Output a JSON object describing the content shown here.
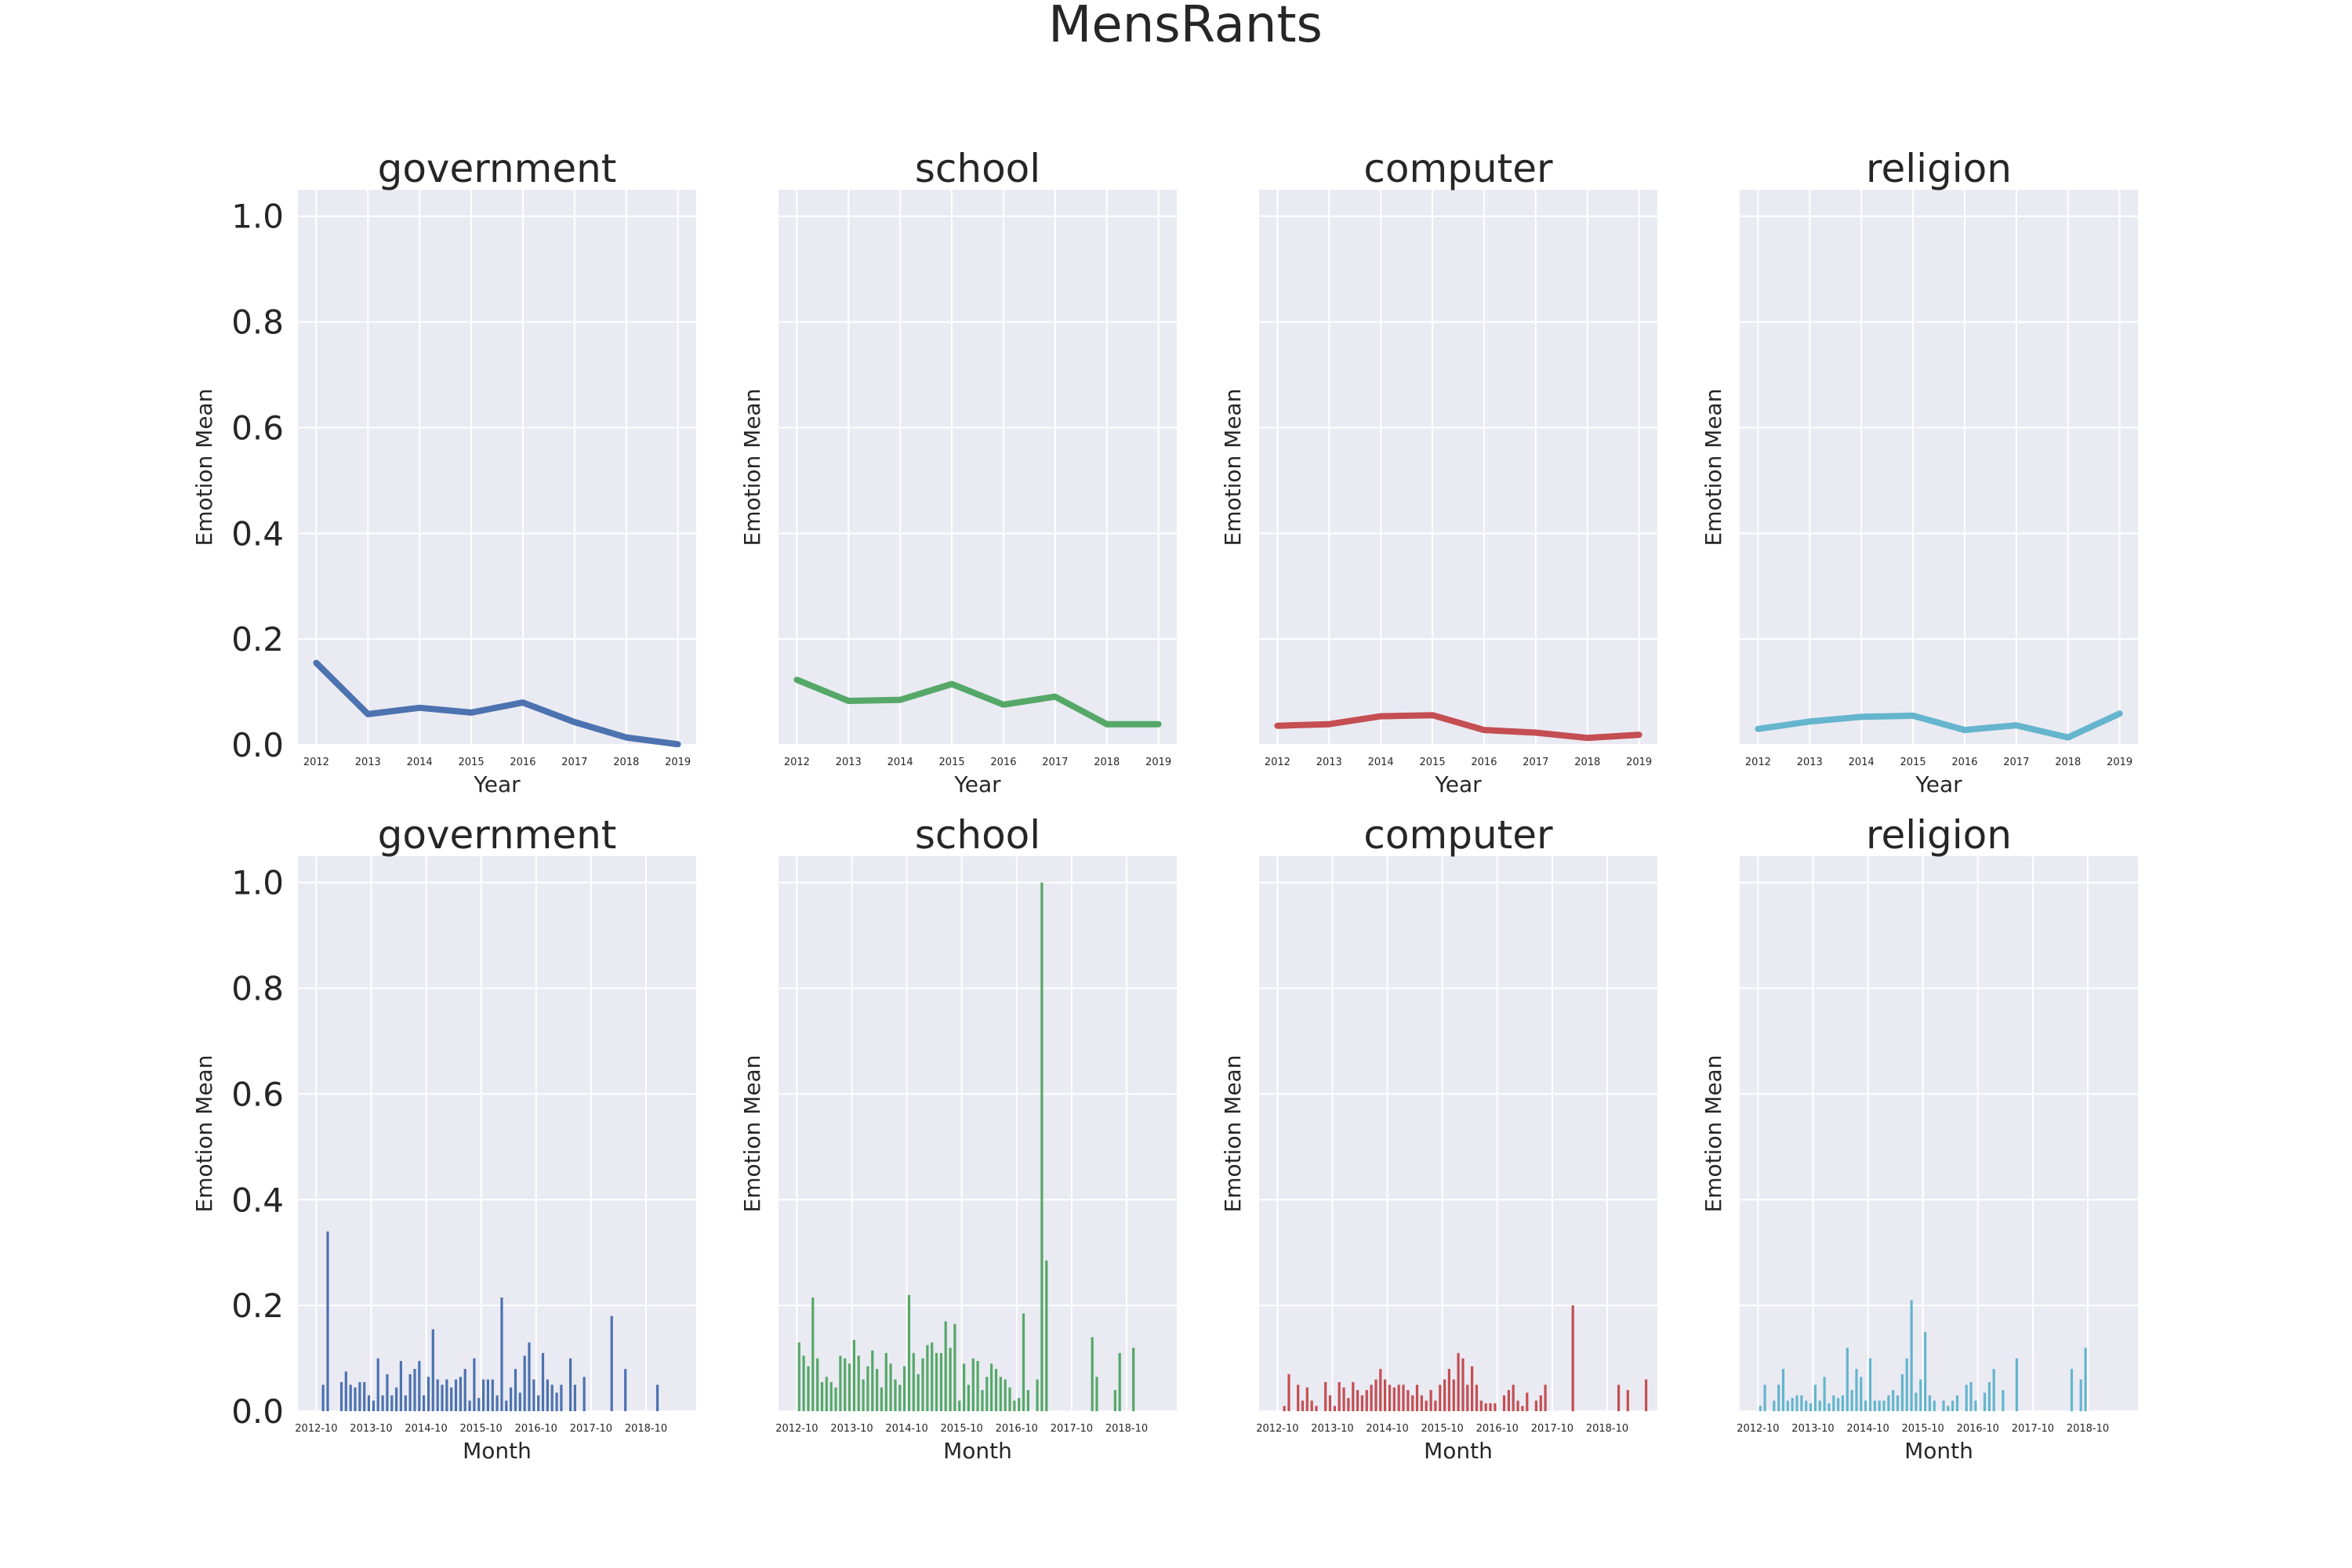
{
  "figure": {
    "title": "MensRants",
    "background": "#ffffff",
    "panel_background": "#eaeaf2",
    "grid_color": "#ffffff"
  },
  "chart_data": [
    {
      "type": "line",
      "title": "government",
      "xlabel": "Year",
      "ylabel": "Emotion Mean",
      "color": "#4c72b0",
      "x": [
        "2012",
        "2013",
        "2014",
        "2015",
        "2016",
        "2017",
        "2018",
        "2019"
      ],
      "values": [
        0.155,
        0.058,
        0.07,
        0.061,
        0.08,
        0.043,
        0.014,
        0.001
      ],
      "ylim": [
        0,
        1.05
      ],
      "yticks": [
        "0.0",
        "0.2",
        "0.4",
        "0.6",
        "0.8",
        "1.0"
      ],
      "show_yticklabels": true,
      "grid": true
    },
    {
      "type": "line",
      "title": "school",
      "xlabel": "Year",
      "ylabel": "Emotion Mean",
      "color": "#55a868",
      "x": [
        "2012",
        "2013",
        "2014",
        "2015",
        "2016",
        "2017",
        "2018",
        "2019"
      ],
      "values": [
        0.123,
        0.083,
        0.085,
        0.115,
        0.076,
        0.091,
        0.039,
        0.039
      ],
      "ylim": [
        0,
        1.05
      ],
      "yticks": [
        "0.0",
        "0.2",
        "0.4",
        "0.6",
        "0.8",
        "1.0"
      ],
      "show_yticklabels": false,
      "grid": true
    },
    {
      "type": "line",
      "title": "computer",
      "xlabel": "Year",
      "ylabel": "Emotion Mean",
      "color": "#c44e52",
      "x": [
        "2012",
        "2013",
        "2014",
        "2015",
        "2016",
        "2017",
        "2018",
        "2019"
      ],
      "values": [
        0.036,
        0.039,
        0.054,
        0.056,
        0.028,
        0.023,
        0.013,
        0.019
      ],
      "ylim": [
        0,
        1.05
      ],
      "yticks": [
        "0.0",
        "0.2",
        "0.4",
        "0.6",
        "0.8",
        "1.0"
      ],
      "show_yticklabels": false,
      "grid": true
    },
    {
      "type": "line",
      "title": "religion",
      "xlabel": "Year",
      "ylabel": "Emotion Mean",
      "color": "#64b5cd",
      "x": [
        "2012",
        "2013",
        "2014",
        "2015",
        "2016",
        "2017",
        "2018",
        "2019"
      ],
      "values": [
        0.03,
        0.044,
        0.053,
        0.055,
        0.028,
        0.037,
        0.014,
        0.059
      ],
      "ylim": [
        0,
        1.05
      ],
      "yticks": [
        "0.0",
        "0.2",
        "0.4",
        "0.6",
        "0.8",
        "1.0"
      ],
      "show_yticklabels": false,
      "grid": true
    },
    {
      "type": "bar",
      "title": "government",
      "xlabel": "Month",
      "ylabel": "Emotion Mean",
      "color": "#4c72b0",
      "xticklabels": [
        "2012-10",
        "2013-10",
        "2014-10",
        "2015-10",
        "2016-10",
        "2017-10",
        "2018-10"
      ],
      "values": [
        0,
        0.05,
        0.34,
        0,
        0,
        0.055,
        0.075,
        0.05,
        0.045,
        0.055,
        0.055,
        0.03,
        0.02,
        0.1,
        0.03,
        0.07,
        0.03,
        0.045,
        0.095,
        0.03,
        0.07,
        0.08,
        0.095,
        0.03,
        0.065,
        0.155,
        0.06,
        0.05,
        0.06,
        0.045,
        0.06,
        0.065,
        0.08,
        0.02,
        0.1,
        0.025,
        0.06,
        0.06,
        0.06,
        0.03,
        0.215,
        0.02,
        0.045,
        0.08,
        0.035,
        0.105,
        0.13,
        0.06,
        0.03,
        0.11,
        0.06,
        0.05,
        0.035,
        0.05,
        0,
        0.1,
        0.05,
        0,
        0.065,
        0,
        0,
        0,
        0,
        0,
        0.18,
        0,
        0,
        0.08,
        0,
        0,
        0,
        0,
        0,
        0,
        0.05,
        0,
        0,
        0,
        0,
        0
      ],
      "ylim": [
        0,
        1.05
      ],
      "yticks": [
        "0.0",
        "0.2",
        "0.4",
        "0.6",
        "0.8",
        "1.0"
      ],
      "show_yticklabels": true,
      "grid": true
    },
    {
      "type": "bar",
      "title": "school",
      "xlabel": "Month",
      "ylabel": "Emotion Mean",
      "color": "#55a868",
      "xticklabels": [
        "2012-10",
        "2013-10",
        "2014-10",
        "2015-10",
        "2016-10",
        "2017-10",
        "2018-10"
      ],
      "values": [
        0.13,
        0.105,
        0.085,
        0.215,
        0.1,
        0.055,
        0.065,
        0.055,
        0.045,
        0.105,
        0.1,
        0.09,
        0.135,
        0.105,
        0.06,
        0.085,
        0.115,
        0.08,
        0.045,
        0.11,
        0.09,
        0.06,
        0.05,
        0.085,
        0.22,
        0.11,
        0.07,
        0.1,
        0.125,
        0.13,
        0.11,
        0.11,
        0.17,
        0.12,
        0.165,
        0.02,
        0.09,
        0.05,
        0.1,
        0.095,
        0.04,
        0.065,
        0.09,
        0.08,
        0.065,
        0.06,
        0.045,
        0.02,
        0.025,
        0.185,
        0.04,
        0,
        0.06,
        1.0,
        0.285,
        0,
        0,
        0,
        0,
        0,
        0,
        0,
        0,
        0,
        0.14,
        0.065,
        0,
        0,
        0,
        0.04,
        0.11,
        0,
        0,
        0.12,
        0,
        0
      ],
      "ylim": [
        0,
        1.05
      ],
      "yticks": [
        "0.0",
        "0.2",
        "0.4",
        "0.6",
        "0.8",
        "1.0"
      ],
      "show_yticklabels": false,
      "grid": true
    },
    {
      "type": "bar",
      "title": "computer",
      "xlabel": "Month",
      "ylabel": "Emotion Mean",
      "color": "#c44e52",
      "xticklabels": [
        "2012-10",
        "2013-10",
        "2014-10",
        "2015-10",
        "2016-10",
        "2017-10",
        "2018-10"
      ],
      "values": [
        0,
        0.01,
        0.07,
        0,
        0.05,
        0.02,
        0.045,
        0.02,
        0.01,
        0,
        0.055,
        0.03,
        0.01,
        0.055,
        0.045,
        0.025,
        0.055,
        0.04,
        0.03,
        0.04,
        0.05,
        0.06,
        0.08,
        0.06,
        0.05,
        0.045,
        0.05,
        0.05,
        0.04,
        0.03,
        0.05,
        0.03,
        0.02,
        0.04,
        0.02,
        0.05,
        0.06,
        0.08,
        0.06,
        0.11,
        0.1,
        0.05,
        0.085,
        0.05,
        0.02,
        0.015,
        0.015,
        0.015,
        0,
        0.03,
        0.04,
        0.05,
        0.02,
        0.01,
        0.035,
        0,
        0.02,
        0.03,
        0.05,
        0,
        0,
        0,
        0,
        0,
        0.2,
        0,
        0,
        0,
        0,
        0,
        0,
        0,
        0,
        0,
        0.05,
        0,
        0.04,
        0,
        0,
        0,
        0.06
      ],
      "ylim": [
        0,
        1.05
      ],
      "yticks": [
        "0.0",
        "0.2",
        "0.4",
        "0.6",
        "0.8",
        "1.0"
      ],
      "show_yticklabels": false,
      "grid": true
    },
    {
      "type": "bar",
      "title": "religion",
      "xlabel": "Month",
      "ylabel": "Emotion Mean",
      "color": "#64b5cd",
      "xticklabels": [
        "2012-10",
        "2013-10",
        "2014-10",
        "2015-10",
        "2016-10",
        "2017-10",
        "2018-10"
      ],
      "values": [
        0.01,
        0.05,
        0,
        0.02,
        0.05,
        0.08,
        0.02,
        0.025,
        0.03,
        0.03,
        0.02,
        0.015,
        0.05,
        0.02,
        0.065,
        0.015,
        0.03,
        0.025,
        0.03,
        0.12,
        0.04,
        0.08,
        0.065,
        0.02,
        0.1,
        0.02,
        0.02,
        0.02,
        0.03,
        0.04,
        0.03,
        0.07,
        0.1,
        0.21,
        0.035,
        0.06,
        0.15,
        0.03,
        0.02,
        0,
        0.02,
        0.01,
        0.02,
        0.03,
        0,
        0.05,
        0.055,
        0.02,
        0,
        0.035,
        0.055,
        0.08,
        0,
        0.04,
        0,
        0,
        0.1,
        0,
        0,
        0,
        0,
        0,
        0,
        0,
        0,
        0,
        0,
        0,
        0.08,
        0,
        0.06,
        0.12,
        0,
        0
      ],
      "ylim": [
        0,
        1.05
      ],
      "yticks": [
        "0.0",
        "0.2",
        "0.4",
        "0.6",
        "0.8",
        "1.0"
      ],
      "show_yticklabels": false,
      "grid": true
    }
  ]
}
